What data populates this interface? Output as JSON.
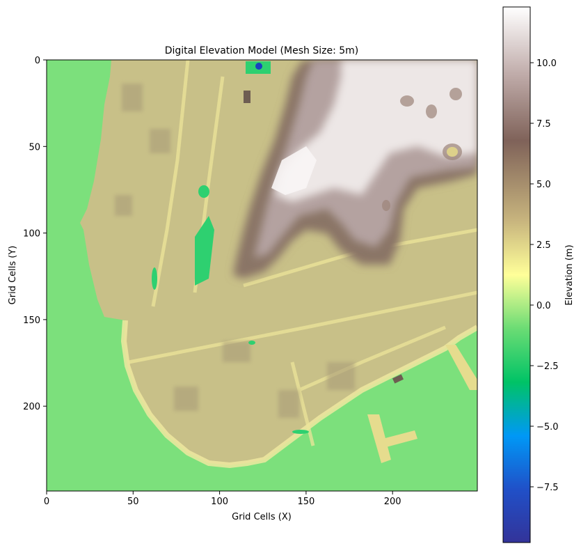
{
  "chart_data": {
    "type": "heatmap",
    "title": "Digital Elevation Model (Mesh Size: 5m)",
    "xlabel": "Grid Cells (X)",
    "ylabel": "Grid Cells (Y)",
    "xlim": [
      0,
      249
    ],
    "ylim": [
      249,
      0
    ],
    "x_ticks": [
      0,
      50,
      100,
      150,
      200
    ],
    "y_ticks": [
      0,
      50,
      100,
      150,
      200
    ],
    "grid": false,
    "colormap": "terrain",
    "colorbar": {
      "label": "Elevation (m)",
      "range": [
        -9.8,
        12.3
      ],
      "ticks": [
        -7.5,
        -5.0,
        -2.5,
        0.0,
        2.5,
        5.0,
        7.5,
        10.0
      ],
      "tick_labels": [
        "−7.5",
        "−5.0",
        "−2.5",
        "0.0",
        "2.5",
        "5.0",
        "7.5",
        "10.0"
      ]
    },
    "colors": {
      "water": "#7ce07c",
      "lowland": "#c8c088",
      "ridge_brown": "#8a7466",
      "summit": "#f4f0f0",
      "depression": "#00c060",
      "deep": "#1a40c0"
    }
  }
}
